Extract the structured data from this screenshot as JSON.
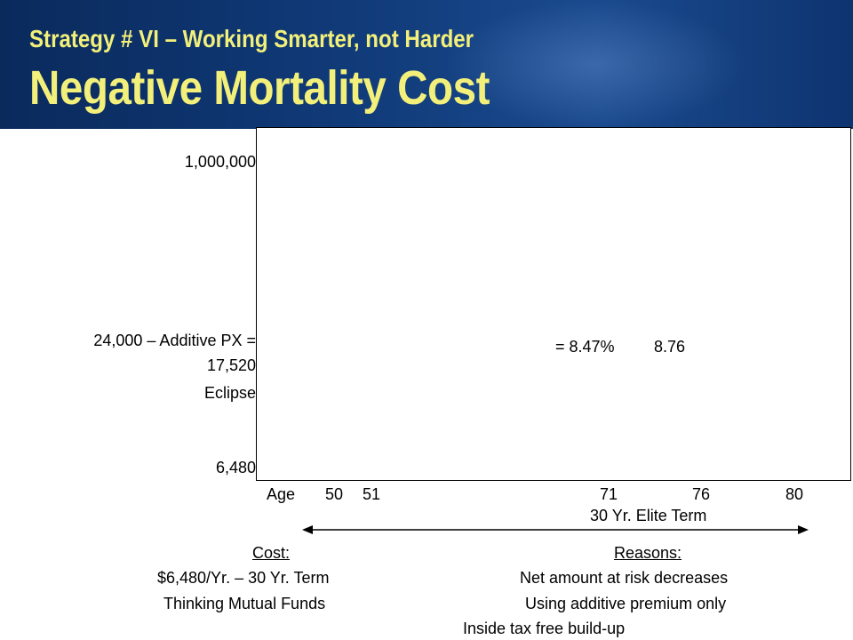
{
  "header": {
    "subtitle": "Strategy # VI – Working Smarter, not Harder",
    "title": "Negative Mortality Cost"
  },
  "chart_data": {
    "type": "line",
    "y_labels": [
      "1,000,000",
      "24,000 – Additive PX =",
      "17,520",
      "Eclipse",
      "6,480"
    ],
    "x_labels": [
      "Age",
      "50",
      "51",
      "71",
      "76",
      "80"
    ],
    "annotations": [
      "= 8.47%",
      "8.76"
    ],
    "series": []
  },
  "notes": {
    "term_label": "30 Yr. Elite Term",
    "cost_heading": "Cost:",
    "cost_line1": "$6,480/Yr. – 30 Yr.  Term",
    "cost_line2": "Thinking Mutual Funds",
    "reasons_heading": "Reasons:",
    "reason1": "Net amount at risk decreases",
    "reason2": "Using additive premium only",
    "reason3": "Inside tax free build-up"
  }
}
